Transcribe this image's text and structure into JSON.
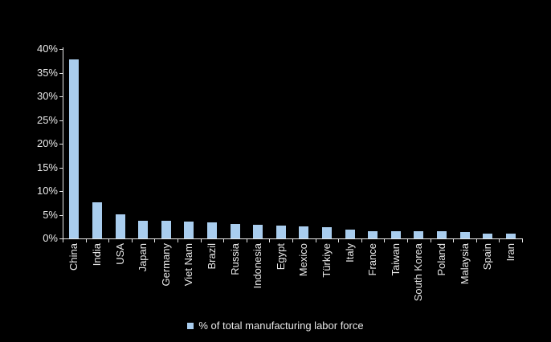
{
  "chart_data": {
    "type": "bar",
    "title": "",
    "categories": [
      "China",
      "India",
      "USA",
      "Japan",
      "Germany",
      "Viet Nam",
      "Brazil",
      "Russia",
      "Indonesia",
      "Egypt",
      "Mexico",
      "Türkiye",
      "Italy",
      "France",
      "Taiwan",
      "South Korea",
      "Poland",
      "Malaysia",
      "Spain",
      "Iran"
    ],
    "values": [
      37.8,
      7.7,
      5.1,
      3.8,
      3.7,
      3.5,
      3.4,
      3.1,
      2.9,
      2.7,
      2.5,
      2.3,
      1.8,
      1.6,
      1.6,
      1.6,
      1.5,
      1.4,
      1.1,
      1.0
    ],
    "xlabel": "",
    "ylabel": "",
    "ylim": [
      0,
      40
    ],
    "ytick_step": 5,
    "ytick_labels": [
      "0%",
      "5%",
      "10%",
      "15%",
      "20%",
      "25%",
      "30%",
      "35%",
      "40%"
    ],
    "grid": false,
    "legend": {
      "position": "bottom",
      "label": "% of total manufacturing labor force"
    },
    "colors": {
      "background": "#000000",
      "bar": "#A9CDEE",
      "axis": "#E8E8E8",
      "text": "#E8E8E8"
    }
  }
}
